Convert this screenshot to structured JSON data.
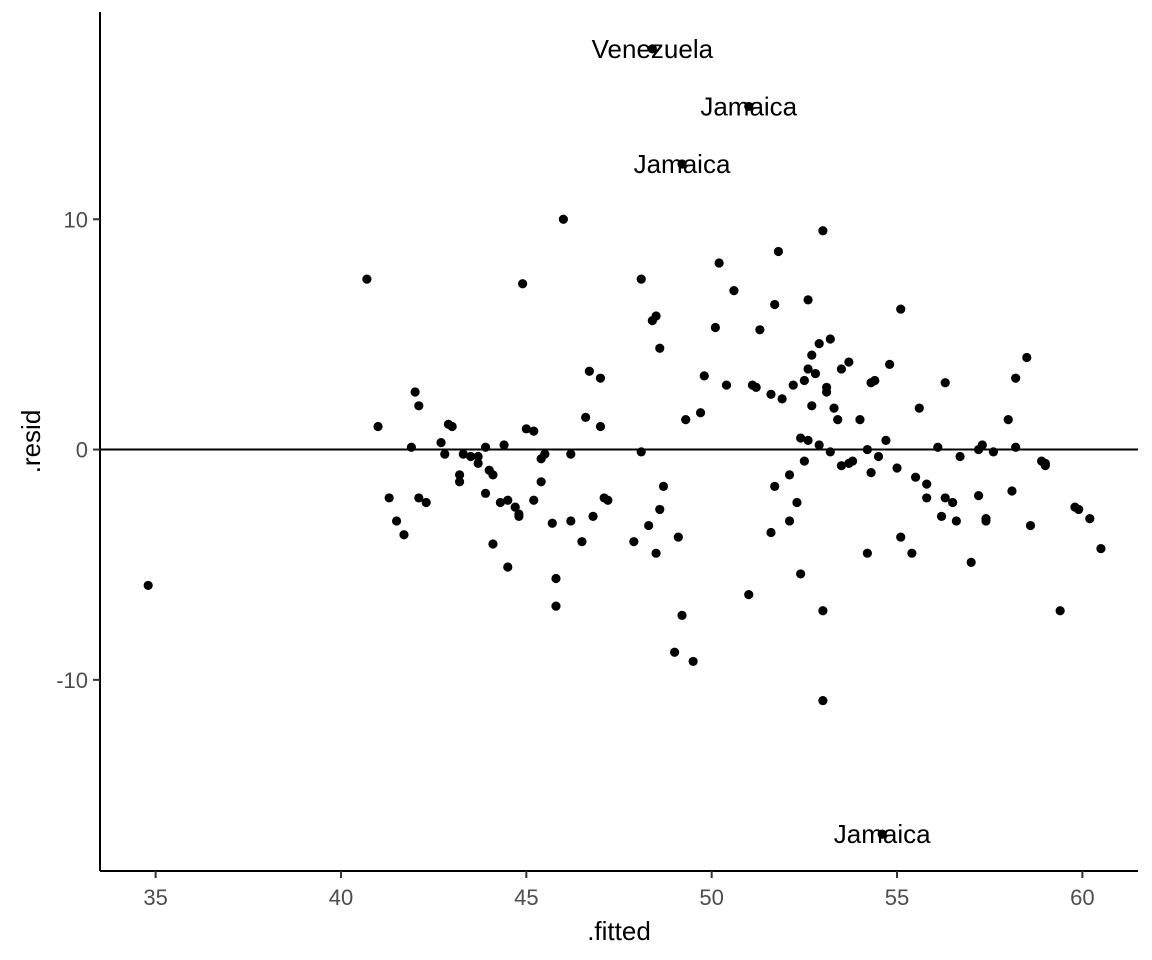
{
  "chart_data": {
    "type": "scatter",
    "title": "",
    "xlabel": ".fitted",
    "ylabel": ".resid",
    "xlim": [
      33.5,
      61.5
    ],
    "ylim": [
      -18.3,
      19.0
    ],
    "xticks": [
      35,
      40,
      45,
      50,
      55,
      60
    ],
    "yticks": [
      -10,
      0,
      10
    ],
    "xtick_labels": [
      "35",
      "40",
      "45",
      "50",
      "55",
      "60"
    ],
    "ytick_labels": [
      "-10",
      "0",
      "10"
    ],
    "grid": false,
    "reference_line_y": 0,
    "point_color": "#000000",
    "points": [
      [
        34.8,
        -5.9
      ],
      [
        40.7,
        7.4
      ],
      [
        41.0,
        1.0
      ],
      [
        41.3,
        -2.1
      ],
      [
        41.5,
        -3.1
      ],
      [
        41.7,
        -3.7
      ],
      [
        41.9,
        0.1
      ],
      [
        42.0,
        2.5
      ],
      [
        42.1,
        1.9
      ],
      [
        42.1,
        -2.1
      ],
      [
        42.3,
        -2.3
      ],
      [
        42.7,
        0.3
      ],
      [
        42.8,
        -0.2
      ],
      [
        42.9,
        1.1
      ],
      [
        43.0,
        1.0
      ],
      [
        43.2,
        -1.1
      ],
      [
        43.2,
        -1.4
      ],
      [
        43.3,
        -0.2
      ],
      [
        43.5,
        -0.3
      ],
      [
        43.7,
        -0.6
      ],
      [
        43.7,
        -0.3
      ],
      [
        43.9,
        0.1
      ],
      [
        43.9,
        -1.9
      ],
      [
        44.0,
        -0.9
      ],
      [
        44.1,
        -1.1
      ],
      [
        44.1,
        -4.1
      ],
      [
        44.3,
        -2.3
      ],
      [
        44.4,
        0.2
      ],
      [
        44.5,
        -5.1
      ],
      [
        44.5,
        -2.2
      ],
      [
        44.7,
        -2.5
      ],
      [
        44.8,
        -2.9
      ],
      [
        44.8,
        -2.8
      ],
      [
        44.9,
        7.2
      ],
      [
        45.0,
        0.9
      ],
      [
        45.2,
        0.8
      ],
      [
        45.2,
        -2.2
      ],
      [
        45.4,
        -1.4
      ],
      [
        45.4,
        -0.4
      ],
      [
        45.5,
        -0.2
      ],
      [
        45.7,
        -3.2
      ],
      [
        45.8,
        -5.6
      ],
      [
        45.8,
        -6.8
      ],
      [
        46.0,
        10.0
      ],
      [
        46.2,
        -3.1
      ],
      [
        46.2,
        -0.2
      ],
      [
        46.5,
        -4.0
      ],
      [
        46.6,
        1.4
      ],
      [
        46.7,
        3.4
      ],
      [
        46.8,
        -2.9
      ],
      [
        47.0,
        3.1
      ],
      [
        47.0,
        1.0
      ],
      [
        47.1,
        -2.1
      ],
      [
        47.2,
        -2.2
      ],
      [
        47.9,
        -4.0
      ],
      [
        48.1,
        7.4
      ],
      [
        48.1,
        -0.1
      ],
      [
        48.3,
        -3.3
      ],
      [
        48.4,
        5.6
      ],
      [
        48.4,
        17.4
      ],
      [
        48.5,
        5.8
      ],
      [
        48.5,
        -4.5
      ],
      [
        48.6,
        4.4
      ],
      [
        48.6,
        -2.6
      ],
      [
        48.7,
        -1.6
      ],
      [
        49.0,
        -8.8
      ],
      [
        49.1,
        -3.8
      ],
      [
        49.2,
        12.4
      ],
      [
        49.2,
        -7.2
      ],
      [
        49.3,
        1.3
      ],
      [
        49.5,
        -9.2
      ],
      [
        49.7,
        1.6
      ],
      [
        49.8,
        3.2
      ],
      [
        50.1,
        5.3
      ],
      [
        50.2,
        8.1
      ],
      [
        50.4,
        2.8
      ],
      [
        50.6,
        6.9
      ],
      [
        51.0,
        -6.3
      ],
      [
        51.0,
        14.9
      ],
      [
        51.1,
        2.8
      ],
      [
        51.2,
        2.7
      ],
      [
        51.3,
        5.2
      ],
      [
        51.6,
        -3.6
      ],
      [
        51.6,
        2.4
      ],
      [
        51.7,
        -1.6
      ],
      [
        51.7,
        6.3
      ],
      [
        51.8,
        8.6
      ],
      [
        51.9,
        2.2
      ],
      [
        52.1,
        -1.1
      ],
      [
        52.1,
        -3.1
      ],
      [
        52.2,
        2.8
      ],
      [
        52.3,
        -2.3
      ],
      [
        52.4,
        0.5
      ],
      [
        52.4,
        -5.4
      ],
      [
        52.5,
        3.0
      ],
      [
        52.5,
        -0.5
      ],
      [
        52.6,
        6.5
      ],
      [
        52.6,
        3.5
      ],
      [
        52.6,
        0.4
      ],
      [
        52.7,
        4.1
      ],
      [
        52.7,
        1.9
      ],
      [
        52.8,
        3.3
      ],
      [
        52.9,
        0.2
      ],
      [
        52.9,
        4.6
      ],
      [
        53.0,
        -7.0
      ],
      [
        53.0,
        -10.9
      ],
      [
        53.0,
        9.5
      ],
      [
        53.1,
        2.5
      ],
      [
        53.1,
        2.7
      ],
      [
        53.2,
        4.8
      ],
      [
        53.2,
        -0.1
      ],
      [
        53.3,
        1.8
      ],
      [
        53.4,
        1.3
      ],
      [
        53.5,
        -0.7
      ],
      [
        53.5,
        3.5
      ],
      [
        53.7,
        -0.6
      ],
      [
        53.7,
        3.8
      ],
      [
        53.8,
        -0.5
      ],
      [
        54.0,
        1.3
      ],
      [
        54.2,
        -4.5
      ],
      [
        54.2,
        0.0
      ],
      [
        54.3,
        2.9
      ],
      [
        54.3,
        -1.0
      ],
      [
        54.4,
        3.0
      ],
      [
        54.5,
        -0.3
      ],
      [
        54.7,
        0.4
      ],
      [
        54.8,
        3.7
      ],
      [
        55.0,
        -0.8
      ],
      [
        55.1,
        -3.8
      ],
      [
        55.1,
        6.1
      ],
      [
        55.4,
        -4.5
      ],
      [
        55.5,
        -1.2
      ],
      [
        55.6,
        1.8
      ],
      [
        55.8,
        -1.5
      ],
      [
        55.8,
        -2.1
      ],
      [
        56.1,
        0.1
      ],
      [
        56.2,
        -2.9
      ],
      [
        56.3,
        2.9
      ],
      [
        56.3,
        -2.1
      ],
      [
        56.5,
        -2.3
      ],
      [
        56.6,
        -3.1
      ],
      [
        56.7,
        -0.3
      ],
      [
        57.0,
        -4.9
      ],
      [
        57.2,
        -2.0
      ],
      [
        57.2,
        0.0
      ],
      [
        57.3,
        0.2
      ],
      [
        57.4,
        -3.1
      ],
      [
        57.4,
        -3.0
      ],
      [
        57.6,
        -0.1
      ],
      [
        58.0,
        1.3
      ],
      [
        58.1,
        -1.8
      ],
      [
        58.2,
        0.1
      ],
      [
        58.2,
        3.1
      ],
      [
        58.5,
        4.0
      ],
      [
        58.6,
        -3.3
      ],
      [
        58.9,
        -0.5
      ],
      [
        59.0,
        -0.6
      ],
      [
        59.0,
        -0.7
      ],
      [
        59.4,
        -7.0
      ],
      [
        59.8,
        -2.5
      ],
      [
        59.9,
        -2.6
      ],
      [
        60.2,
        -3.0
      ],
      [
        60.5,
        -4.3
      ],
      [
        54.6,
        -16.7
      ]
    ],
    "annotations": [
      {
        "text": "Venezuela",
        "x": 48.4,
        "y": 17.4
      },
      {
        "text": "Jamaica",
        "x": 51.0,
        "y": 14.9
      },
      {
        "text": "Jamaica",
        "x": 49.2,
        "y": 12.4
      },
      {
        "text": "Jamaica",
        "x": 54.6,
        "y": -16.7
      }
    ]
  }
}
